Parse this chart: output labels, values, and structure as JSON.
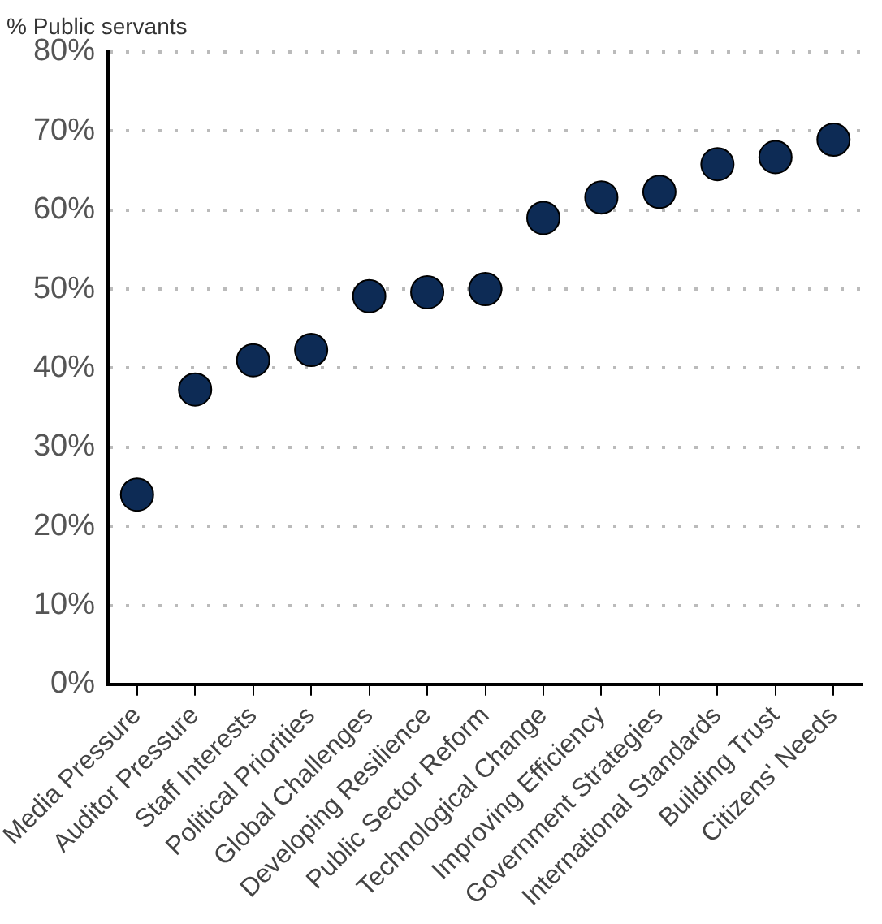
{
  "chart_data": {
    "type": "scatter",
    "ylabel": "% Public servants",
    "categories": [
      "Media Pressure",
      "Auditor Pressure",
      "Staff Interests",
      "Political Priorities",
      "Global Challenges",
      "Developing Resilience",
      "Public Sector Reform",
      "Technological Change",
      "Improving Efficiency",
      "Government Strategies",
      "International Standards",
      "Building Trust",
      "Citizens' Needs"
    ],
    "series": [
      {
        "color": "#0d2b55",
        "values": [
          24,
          37.3,
          41,
          42.3,
          49.1,
          49.6,
          50,
          59,
          61.6,
          62.3,
          65.8,
          66.7,
          68.9
        ]
      }
    ],
    "ylim": [
      0,
      80
    ],
    "yticks": [
      {
        "value": 0,
        "label": "0%"
      },
      {
        "value": 10,
        "label": "10%"
      },
      {
        "value": 20,
        "label": "20%"
      },
      {
        "value": 30,
        "label": "30%"
      },
      {
        "value": 40,
        "label": "40%"
      },
      {
        "value": 50,
        "label": "50%"
      },
      {
        "value": 60,
        "label": "60%"
      },
      {
        "value": 70,
        "label": "70%"
      },
      {
        "value": 80,
        "label": "80%"
      }
    ],
    "grid": "y",
    "marker": "circle",
    "legend": false
  }
}
